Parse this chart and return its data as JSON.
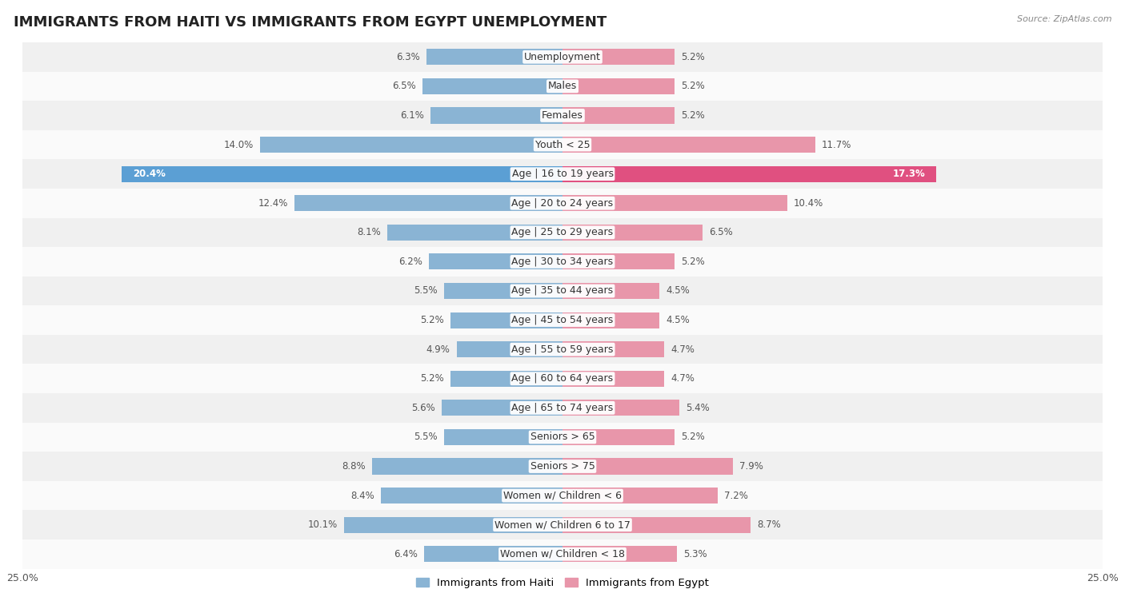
{
  "title": "IMMIGRANTS FROM HAITI VS IMMIGRANTS FROM EGYPT UNEMPLOYMENT",
  "source": "Source: ZipAtlas.com",
  "categories": [
    "Unemployment",
    "Males",
    "Females",
    "Youth < 25",
    "Age | 16 to 19 years",
    "Age | 20 to 24 years",
    "Age | 25 to 29 years",
    "Age | 30 to 34 years",
    "Age | 35 to 44 years",
    "Age | 45 to 54 years",
    "Age | 55 to 59 years",
    "Age | 60 to 64 years",
    "Age | 65 to 74 years",
    "Seniors > 65",
    "Seniors > 75",
    "Women w/ Children < 6",
    "Women w/ Children 6 to 17",
    "Women w/ Children < 18"
  ],
  "haiti_values": [
    6.3,
    6.5,
    6.1,
    14.0,
    20.4,
    12.4,
    8.1,
    6.2,
    5.5,
    5.2,
    4.9,
    5.2,
    5.6,
    5.5,
    8.8,
    8.4,
    10.1,
    6.4
  ],
  "egypt_values": [
    5.2,
    5.2,
    5.2,
    11.7,
    17.3,
    10.4,
    6.5,
    5.2,
    4.5,
    4.5,
    4.7,
    4.7,
    5.4,
    5.2,
    7.9,
    7.2,
    8.7,
    5.3
  ],
  "haiti_color": "#8ab4d4",
  "egypt_color": "#e896aa",
  "haiti_label": "Immigrants from Haiti",
  "egypt_label": "Immigrants from Egypt",
  "xlim": 25.0,
  "row_colors": [
    "#f0f0f0",
    "#fafafa"
  ],
  "bar_height": 0.55,
  "title_fontsize": 13,
  "label_fontsize": 9.0,
  "value_fontsize": 8.5,
  "legend_fontsize": 9.5,
  "highlight_haiti_color": "#5b9fd4",
  "highlight_egypt_color": "#e05080"
}
